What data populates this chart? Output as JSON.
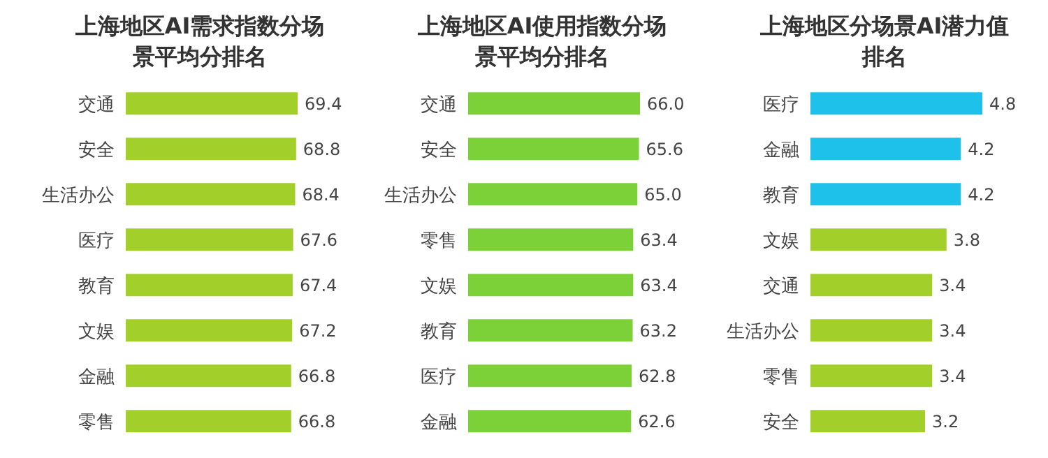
{
  "chart_data": [
    {
      "type": "bar",
      "orientation": "horizontal",
      "title": "上海地区AI需求指数分场景平均分排名",
      "categories": [
        "交通",
        "安全",
        "生活办公",
        "医疗",
        "教育",
        "文娱",
        "金融",
        "零售"
      ],
      "values": [
        69.4,
        68.8,
        68.4,
        67.6,
        67.4,
        67.2,
        66.8,
        66.8
      ],
      "value_labels": [
        "69.4",
        "68.8",
        "68.4",
        "67.6",
        "67.4",
        "67.2",
        "66.8",
        "66.8"
      ],
      "color": "#a2cf2a"
    },
    {
      "type": "bar",
      "orientation": "horizontal",
      "title": "上海地区AI使用指数分场景平均分排名",
      "categories": [
        "交通",
        "安全",
        "生活办公",
        "零售",
        "文娱",
        "教育",
        "医疗",
        "金融"
      ],
      "values": [
        66.0,
        65.6,
        65.0,
        63.4,
        63.4,
        63.2,
        62.8,
        62.6
      ],
      "value_labels": [
        "66.0",
        "65.6",
        "65.0",
        "63.4",
        "63.4",
        "63.2",
        "62.8",
        "62.6"
      ],
      "color": "#7dd138"
    },
    {
      "type": "bar",
      "orientation": "horizontal",
      "title": "上海地区分场景AI潜力值排名",
      "categories": [
        "医疗",
        "金融",
        "教育",
        "文娱",
        "交通",
        "生活办公",
        "零售",
        "安全"
      ],
      "values": [
        4.8,
        4.2,
        4.2,
        3.8,
        3.4,
        3.4,
        3.4,
        3.2
      ],
      "value_labels": [
        "4.8",
        "4.2",
        "4.2",
        "3.8",
        "3.4",
        "3.4",
        "3.4",
        "3.2"
      ],
      "colors": [
        "#1ec1ea",
        "#1ec1ea",
        "#1ec1ea",
        "#a2cf2a",
        "#a2cf2a",
        "#a2cf2a",
        "#a2cf2a",
        "#a2cf2a"
      ]
    }
  ]
}
